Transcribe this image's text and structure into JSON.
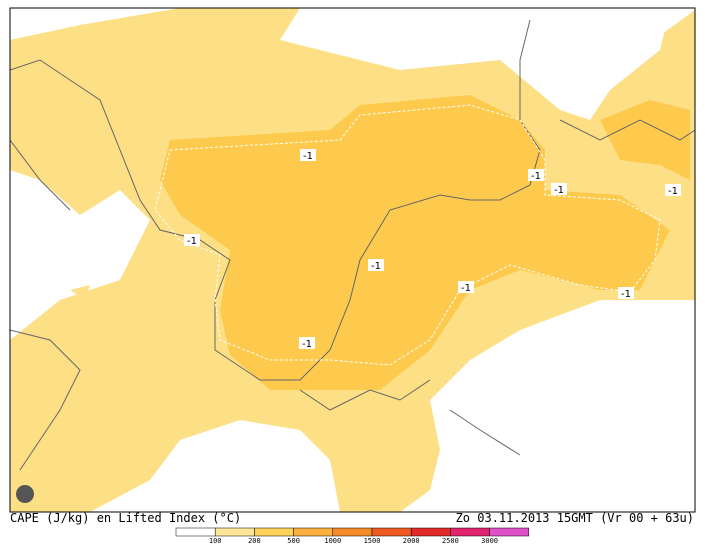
{
  "title": "CAPE (J/kg) en Lifted Index (°C)",
  "valid_time": "Zo 03.11.2013 15GMT (Vr 00 + 63u)",
  "colorbar": {
    "colors": [
      "#ffffff",
      "#fee599",
      "#fdd25a",
      "#fbb040",
      "#f58a28",
      "#ee5a22",
      "#e32a2a",
      "#e0246e",
      "#e050c8"
    ],
    "labels": [
      "100",
      "200",
      "500",
      "1000",
      "1500",
      "2000",
      "2500",
      "3000"
    ]
  },
  "contour_labels": [
    "-1",
    "-1",
    "-1",
    "-1",
    "-1",
    "-1",
    "-1",
    "-1",
    "-1"
  ]
}
